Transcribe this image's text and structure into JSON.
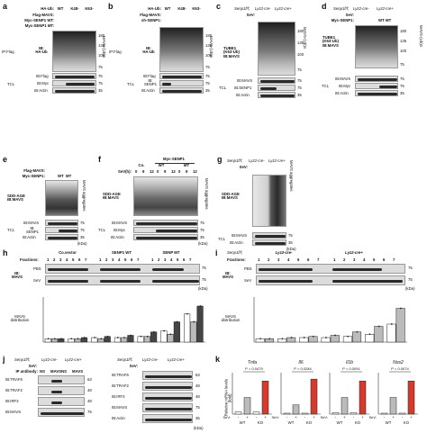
{
  "panels": {
    "a": {
      "label": "a",
      "rows": [
        "HA-Ub:",
        "Flag-MAVS:",
        "Myc-SENP1 WT:",
        "Myc-SENP1 MT:"
      ],
      "cols": [
        "WT",
        "K48-",
        "K63-"
      ],
      "ip": "IP:Flag",
      "ib1": "IB:\nHA-Ub",
      "side": "MAVS-(Ub)n",
      "ib2": "IB:Flag",
      "ib3": "IB:Myc",
      "ib4": "IB:Actin",
      "tcl": "TCL",
      "mw": [
        "180",
        "135",
        "100",
        "75",
        "75",
        "75",
        "35"
      ]
    },
    "b": {
      "label": "b",
      "rows": [
        "HA-Ub:",
        "Flag-MAVS:",
        "sh-SENP1:"
      ],
      "cols": [
        "WT",
        "K48-",
        "K63-"
      ],
      "ip": "IP:Flag",
      "ib1": "IB:\nHA-Ub",
      "side": "MAVS-(Ub)n",
      "ib2": "IB:Flag",
      "ib3": "IB:\nSENP1",
      "ib4": "IB:Actin",
      "tcl": "TCL",
      "mw": [
        "180",
        "135",
        "100",
        "75",
        "75",
        "75",
        "35"
      ]
    },
    "c": {
      "label": "c",
      "geno": [
        "Senp1f/f;",
        "Lyz2-cre-",
        "Lyz2-cre+"
      ],
      "sev": "SeV:",
      "ib1": "TUBE1\n(K63-Ub)\nIB:MAVS",
      "side": "MAVS-(Ub)n",
      "ib2": "IB:MAVS",
      "ib3": "IB:SENP1",
      "ib4": "IB:Actin",
      "tcl": "TCL",
      "mw": [
        "180",
        "135",
        "100",
        "75",
        "75",
        "75",
        "35"
      ]
    },
    "d": {
      "label": "d",
      "geno": [
        "Senp1f/f;",
        "Lyz2-cre-",
        "Lyz2-cre+"
      ],
      "sev": "SeV:",
      "myc": "Myc-SENP1:",
      "wt": "WT",
      "mt": "MT",
      "ip": "TUBE1\n(K63-Ub)\nIB:MAVS",
      "side": "MAVS-(Ub)n",
      "ib2": "IB:MAVS",
      "ib3": "IB:Myc",
      "ib4": "IB:Actin",
      "tcl": "TCL",
      "mw": [
        "180",
        "135",
        "100",
        "75",
        "75",
        "75",
        "35"
      ]
    },
    "e": {
      "label": "e",
      "rows": [
        "Flag-MAVS:",
        "Myc-SENP1:"
      ],
      "wt": "WT",
      "mt": "MT",
      "ib1": "SDD-AGE\nIB:MAVS",
      "side": "MAVS aggregates",
      "ib2": "IB:MAVS",
      "ib3": "IB:\nSENP1",
      "ib4": "IB:Actin",
      "tcl": "TCL",
      "mw": [
        "75",
        "75",
        "35"
      ],
      "kda": "(kDa)"
    },
    "f": {
      "label": "f",
      "title": "Myc-SENP1",
      "co": "Co.",
      "wt": "WT",
      "mt": "MT",
      "sev": "SeV(h):",
      "times": [
        "0",
        "9",
        "12",
        "0",
        "9",
        "12",
        "0",
        "9",
        "12"
      ],
      "ib1": "SDD-AGE\nIB:MAVS",
      "side": "MAVS aggregates",
      "ib2": "IB:MAVS",
      "ib3": "IB:Myc",
      "ib4": "IB:Actin",
      "tcl": "TCL",
      "mw": [
        "75",
        "75",
        "35"
      ],
      "kda": "(kDa)"
    },
    "g": {
      "label": "g",
      "geno": [
        "Senp1f/f;",
        "Lyz2-cre-",
        "Lyz2-cre+"
      ],
      "sev": "SeV:",
      "ib1": "SDD-AGE\nIB:MAVS",
      "side": "MAVS aggregates",
      "ib2": "IB:MAVS",
      "ib3": "IB:Actin",
      "tcl": "TCL",
      "mw": [
        "75",
        "35"
      ],
      "kda": "(kDa)"
    },
    "h": {
      "label": "h",
      "groups": [
        "Co.vector",
        "SENP1 WT",
        "SENP MT"
      ],
      "fractions": "Fractions:",
      "nums": [
        "1",
        "2",
        "3",
        "4",
        "5",
        "6",
        "7"
      ],
      "ib": "IB:\nMAVS",
      "pbs": "PBS",
      "sev": "SeV",
      "ylabel": "MAVS\ndistribution",
      "mw": [
        "75",
        "75"
      ],
      "kda": "(kDa)"
    },
    "i": {
      "label": "i",
      "geno": "Senp1f/f;",
      "groups": [
        "Lyz2-cre-",
        "Lyz2-cre+"
      ],
      "fractions": "Fractions:",
      "nums": [
        "1",
        "2",
        "3",
        "4",
        "5",
        "6",
        "7"
      ],
      "ib": "IB:\nMAVS",
      "pbs": "PBS",
      "sev": "SeV",
      "ylabel": "MAVS\ndistribution",
      "mw": [
        "75",
        "75"
      ],
      "kda": "(kDa)"
    },
    "j": {
      "label": "j",
      "geno": "Senp1f/f;",
      "groups": [
        "Lyz2-cre-",
        "Lyz2-cre+"
      ],
      "sev": "SeV:",
      "ipab": "IP antibody:",
      "ipcols": [
        "NS",
        "MAVS",
        "NS",
        "MAVS"
      ],
      "left_ib": [
        "IB:TRAF6",
        "IB:TRAF2",
        "IB:IRF3",
        "IB:MAVS"
      ],
      "left_mw": [
        "63",
        "48",
        "48",
        "75"
      ],
      "right_ib": [
        "IB:TRAF6",
        "IB:TRAF2",
        "IB:IRF3",
        "IB:MAVS",
        "IB:Actin"
      ],
      "right_mw": [
        "63",
        "48",
        "48",
        "75",
        "35"
      ],
      "kda": "(kDa)"
    },
    "k": {
      "label": "k",
      "genes": [
        "Tnfa",
        "Il6",
        "Il1b",
        "Nos2"
      ],
      "ylabel": "Relative mRNA levels\n(fold)",
      "sev": "SeV:",
      "wtko": [
        "WT",
        "KO"
      ]
    }
  },
  "chart_data": [
    {
      "type": "bar",
      "title": "MAVS distribution (h)",
      "categories": [
        "1",
        "2",
        "3",
        "4",
        "5",
        "6",
        "7"
      ],
      "series": [
        {
          "name": "Co.vector",
          "values": [
            0.3,
            0.3,
            0.4,
            0.4,
            0.5,
            1.0,
            2.5
          ]
        },
        {
          "name": "SENP1 WT",
          "values": [
            0.3,
            0.3,
            0.3,
            0.4,
            0.5,
            0.7,
            1.8
          ]
        },
        {
          "name": "SENP MT",
          "values": [
            0.3,
            0.4,
            0.5,
            0.6,
            0.9,
            1.8,
            3.2
          ]
        }
      ],
      "ylim": [
        0,
        4
      ]
    },
    {
      "type": "bar",
      "title": "MAVS distribution (i)",
      "categories": [
        "1",
        "2",
        "3",
        "4",
        "5",
        "6",
        "7"
      ],
      "series": [
        {
          "name": "Lyz2-cre-",
          "values": [
            0.3,
            0.3,
            0.4,
            0.4,
            0.5,
            0.7,
            1.6
          ]
        },
        {
          "name": "Lyz2-cre+",
          "values": [
            0.3,
            0.4,
            0.5,
            0.6,
            0.9,
            1.4,
            3.0
          ]
        }
      ],
      "ylim": [
        0,
        4
      ]
    },
    {
      "type": "bar",
      "title": "Tnfa",
      "categories": [
        "WT -",
        "WT +",
        "KO -",
        "KO +"
      ],
      "values": [
        1,
        8,
        1,
        16
      ],
      "p": "P = 0.0479",
      "ylim": [
        0,
        20
      ]
    },
    {
      "type": "bar",
      "title": "Il6",
      "categories": [
        "WT -",
        "WT +",
        "KO -",
        "KO +"
      ],
      "values": [
        1,
        10,
        1,
        38
      ],
      "p": "P = 0.0284",
      "ylim": [
        0,
        45
      ]
    },
    {
      "type": "bar",
      "title": "Il1b",
      "categories": [
        "WT -",
        "WT +",
        "KO -",
        "KO +"
      ],
      "values": [
        1,
        12,
        1,
        24
      ],
      "p": "P = 0.0091",
      "ylim": [
        0,
        30
      ]
    },
    {
      "type": "bar",
      "title": "Nos2",
      "categories": [
        "WT -",
        "WT +",
        "KO -",
        "KO +"
      ],
      "values": [
        1,
        18,
        1,
        36
      ],
      "p": "P = 0.0074",
      "ylim": [
        0,
        45
      ]
    }
  ]
}
